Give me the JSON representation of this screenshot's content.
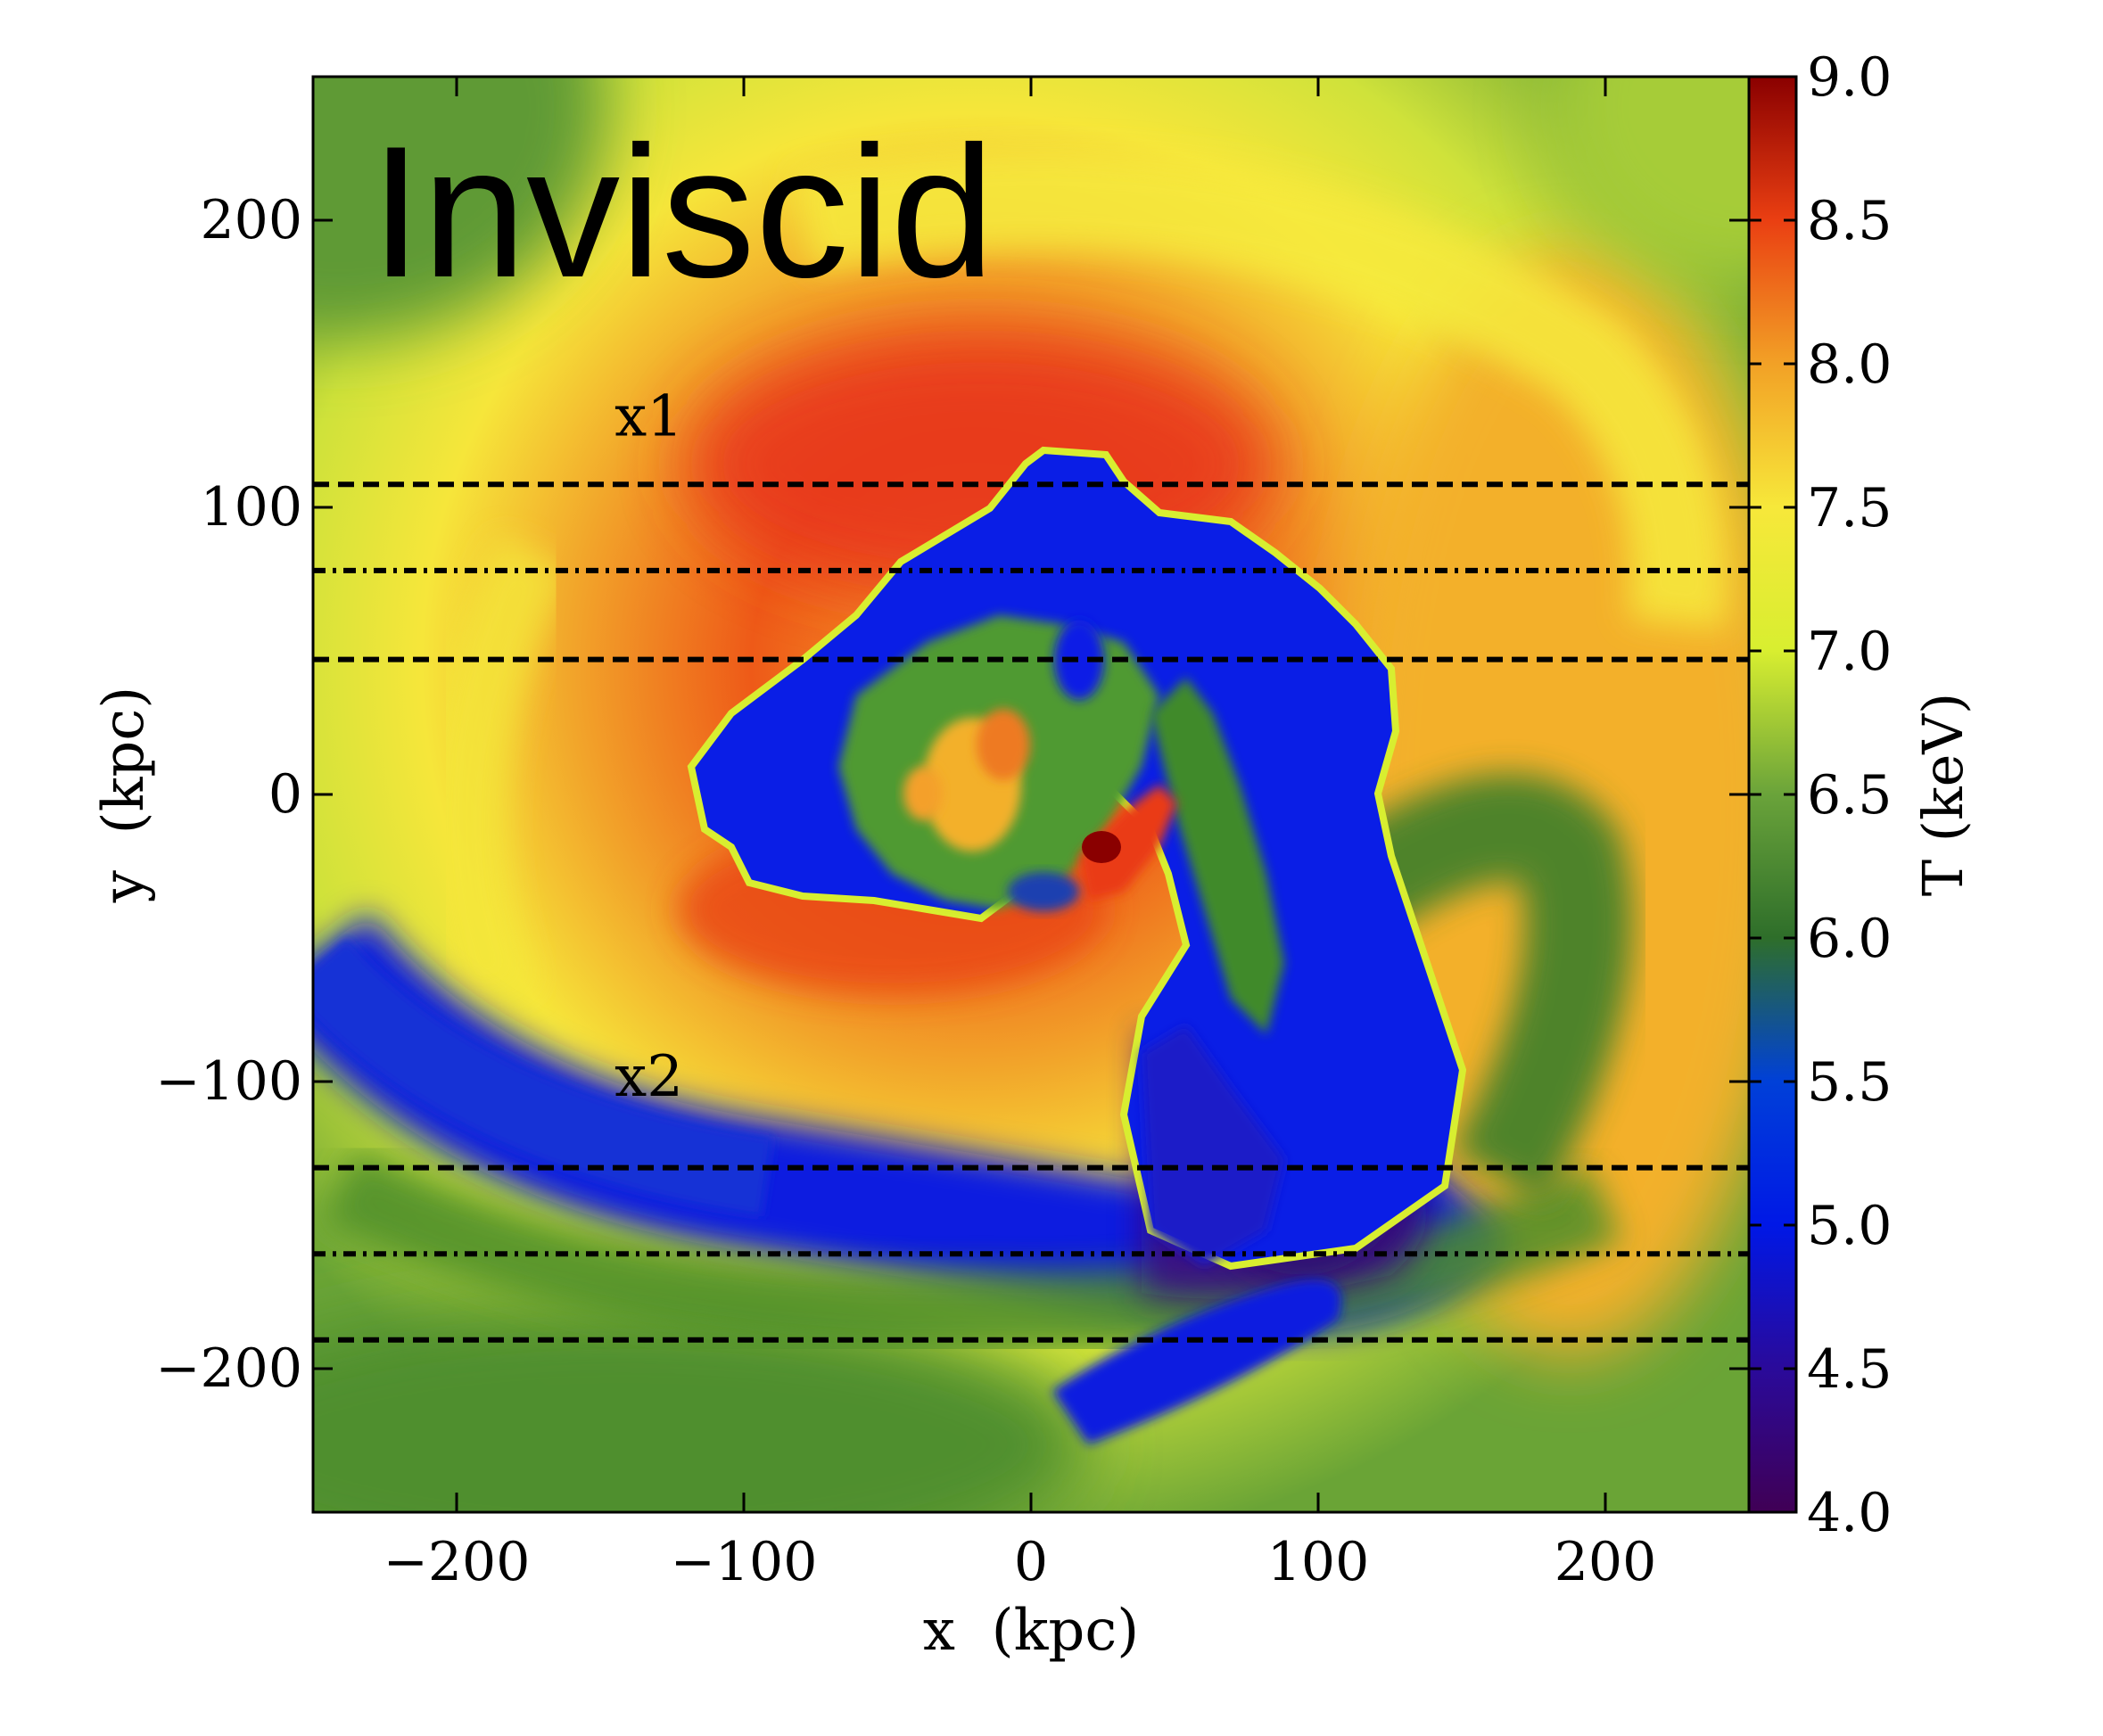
{
  "chart_data": {
    "type": "heatmap",
    "panel_label": "Inviscid",
    "xlabel": "x  (kpc)",
    "ylabel": "y  (kpc)",
    "xlim": [
      -250,
      250
    ],
    "ylim": [
      -250,
      250
    ],
    "x_ticks": [
      {
        "value": -200,
        "label": "−200"
      },
      {
        "value": -100,
        "label": "−100"
      },
      {
        "value": 0,
        "label": "0"
      },
      {
        "value": 100,
        "label": "100"
      },
      {
        "value": 200,
        "label": "200"
      }
    ],
    "y_ticks": [
      {
        "value": -200,
        "label": "−200"
      },
      {
        "value": -100,
        "label": "−100"
      },
      {
        "value": 0,
        "label": "0"
      },
      {
        "value": 100,
        "label": "100"
      },
      {
        "value": 200,
        "label": "200"
      }
    ],
    "colorbar": {
      "label": "T (keV)",
      "range": [
        4.0,
        9.0
      ],
      "ticks": [
        {
          "value": 4.0,
          "label": "4.0"
        },
        {
          "value": 4.5,
          "label": "4.5"
        },
        {
          "value": 5.0,
          "label": "5.0"
        },
        {
          "value": 5.5,
          "label": "5.5"
        },
        {
          "value": 6.0,
          "label": "6.0"
        },
        {
          "value": 6.5,
          "label": "6.5"
        },
        {
          "value": 7.0,
          "label": "7.0"
        },
        {
          "value": 7.5,
          "label": "7.5"
        },
        {
          "value": 8.0,
          "label": "8.0"
        },
        {
          "value": 8.5,
          "label": "8.5"
        },
        {
          "value": 9.0,
          "label": "9.0"
        }
      ],
      "colormap": [
        "#400055",
        "#2a0a9a",
        "#0018e6",
        "#0040d8",
        "#2e6e2a",
        "#6aa33a",
        "#d8ee30",
        "#f7e83a",
        "#f2a126",
        "#ea3f12",
        "#8a0000"
      ]
    },
    "annotations": [
      {
        "text": "x1",
        "x": -145,
        "y": 125
      },
      {
        "text": "x2",
        "x": -145,
        "y": -105
      }
    ],
    "horizontal_lines": [
      {
        "y": 108,
        "style": "dashed"
      },
      {
        "y": 78,
        "style": "dashdot"
      },
      {
        "y": 47,
        "style": "dashed"
      },
      {
        "y": -130,
        "style": "dashed"
      },
      {
        "y": -160,
        "style": "dashdot"
      },
      {
        "y": -190,
        "style": "dashed"
      }
    ],
    "grid": false
  }
}
